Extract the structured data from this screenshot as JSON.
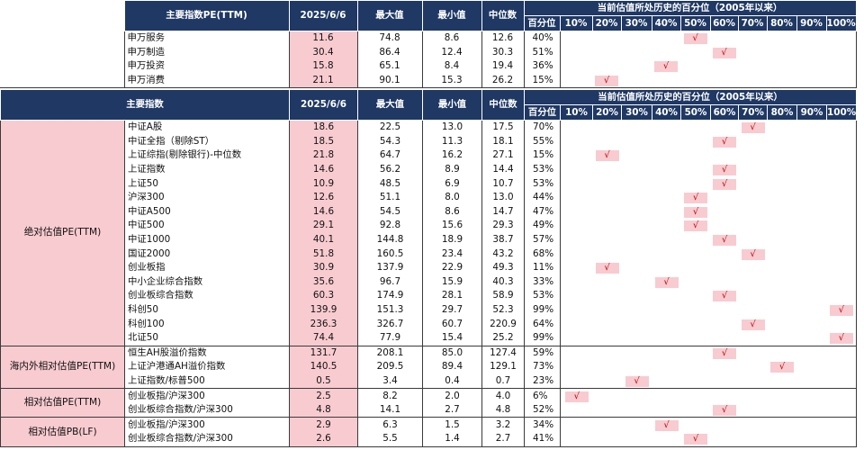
{
  "check_mark": "√",
  "table1": {
    "headers": {
      "name": "主要指数PE(TTM)",
      "date": "2025/6/6",
      "max": "最大值",
      "min": "最小值",
      "median": "中位数",
      "hist_title": "当前估值所处历史的百分位（2005年以来）",
      "pct": "百分位",
      "bins": [
        "10%",
        "20%",
        "30%",
        "40%",
        "50%",
        "60%",
        "70%",
        "80%",
        "90%",
        "100%"
      ]
    },
    "rows": [
      {
        "name": "申万服务",
        "cur": "11.6",
        "max": "74.8",
        "min": "8.6",
        "median": "12.6",
        "pct": "40%",
        "bin": 4
      },
      {
        "name": "申万制造",
        "cur": "30.4",
        "max": "86.4",
        "min": "12.4",
        "median": "30.3",
        "pct": "51%",
        "bin": 5
      },
      {
        "name": "申万投资",
        "cur": "15.8",
        "max": "65.1",
        "min": "8.4",
        "median": "19.4",
        "pct": "36%",
        "bin": 3
      },
      {
        "name": "申万消费",
        "cur": "21.1",
        "max": "90.1",
        "min": "15.3",
        "median": "26.2",
        "pct": "15%",
        "bin": 1
      }
    ]
  },
  "table2": {
    "headers": {
      "name": "主要指数",
      "date": "2025/6/6",
      "max": "最大值",
      "min": "最小值",
      "median": "中位数",
      "hist_title": "当前估值所处历史的百分位（2005年以来）",
      "pct": "百分位",
      "bins": [
        "10%",
        "20%",
        "30%",
        "40%",
        "50%",
        "60%",
        "70%",
        "80%",
        "90%",
        "100%"
      ]
    },
    "groups": [
      {
        "category": "绝对估值PE(TTM)",
        "rows": [
          {
            "name": "中证A股",
            "cur": "18.6",
            "max": "22.5",
            "min": "13.0",
            "median": "17.5",
            "pct": "70%",
            "bin": 6
          },
          {
            "name": "中证全指（剔除ST）",
            "cur": "18.5",
            "max": "54.3",
            "min": "11.3",
            "median": "18.1",
            "pct": "55%",
            "bin": 5
          },
          {
            "name": "上证综指(剔除银行)-中位数",
            "cur": "21.8",
            "max": "64.7",
            "min": "16.2",
            "median": "27.1",
            "pct": "15%",
            "bin": 1
          },
          {
            "name": "上证指数",
            "cur": "14.6",
            "max": "56.2",
            "min": "8.9",
            "median": "14.4",
            "pct": "53%",
            "bin": 5
          },
          {
            "name": "上证50",
            "cur": "10.9",
            "max": "48.5",
            "min": "6.9",
            "median": "10.7",
            "pct": "53%",
            "bin": 5
          },
          {
            "name": "沪深300",
            "cur": "12.6",
            "max": "51.1",
            "min": "8.0",
            "median": "13.0",
            "pct": "44%",
            "bin": 4
          },
          {
            "name": "中证A500",
            "cur": "14.6",
            "max": "54.5",
            "min": "8.6",
            "median": "14.7",
            "pct": "47%",
            "bin": 4
          },
          {
            "name": "中证500",
            "cur": "29.1",
            "max": "92.8",
            "min": "15.6",
            "median": "29.3",
            "pct": "49%",
            "bin": 4
          },
          {
            "name": "中证1000",
            "cur": "40.1",
            "max": "144.8",
            "min": "18.9",
            "median": "38.7",
            "pct": "57%",
            "bin": 5
          },
          {
            "name": "国证2000",
            "cur": "51.8",
            "max": "160.5",
            "min": "23.4",
            "median": "43.2",
            "pct": "68%",
            "bin": 6
          },
          {
            "name": "创业板指",
            "cur": "30.9",
            "max": "137.9",
            "min": "22.9",
            "median": "49.3",
            "pct": "11%",
            "bin": 1
          },
          {
            "name": "中小企业综合指数",
            "cur": "35.6",
            "max": "96.7",
            "min": "15.9",
            "median": "40.3",
            "pct": "33%",
            "bin": 3
          },
          {
            "name": "创业板综合指数",
            "cur": "60.3",
            "max": "174.9",
            "min": "28.1",
            "median": "58.9",
            "pct": "53%",
            "bin": 5
          },
          {
            "name": "科创50",
            "cur": "139.9",
            "max": "151.3",
            "min": "29.7",
            "median": "52.3",
            "pct": "99%",
            "bin": 9
          },
          {
            "name": "科创100",
            "cur": "236.3",
            "max": "326.7",
            "min": "60.7",
            "median": "220.9",
            "pct": "64%",
            "bin": 6
          },
          {
            "name": "北证50",
            "cur": "74.4",
            "max": "77.9",
            "min": "15.4",
            "median": "25.2",
            "pct": "99%",
            "bin": 9
          }
        ]
      },
      {
        "category": "海内外相对估值PE(TTM)",
        "rows": [
          {
            "name": "恒生AH股溢价指数",
            "cur": "131.7",
            "max": "208.1",
            "min": "85.0",
            "median": "127.4",
            "pct": "59%",
            "bin": 5
          },
          {
            "name": "上证沪港通AH溢价指数",
            "cur": "140.5",
            "max": "209.5",
            "min": "89.4",
            "median": "129.1",
            "pct": "73%",
            "bin": 7
          },
          {
            "name": "上证指数/标普500",
            "cur": "0.5",
            "max": "3.4",
            "min": "0.4",
            "median": "0.7",
            "pct": "23%",
            "bin": 2
          }
        ]
      },
      {
        "category": "相对估值PE(TTM)",
        "rows": [
          {
            "name": "创业板指/沪深300",
            "cur": "2.5",
            "max": "8.2",
            "min": "2.0",
            "median": "4.0",
            "pct": "6%",
            "bin": 0
          },
          {
            "name": "创业板综合指数/沪深300",
            "cur": "4.8",
            "max": "14.1",
            "min": "2.7",
            "median": "4.8",
            "pct": "52%",
            "bin": 5
          }
        ]
      },
      {
        "category": "相对估值PB(LF)",
        "rows": [
          {
            "name": "创业板指/沪深300",
            "cur": "2.9",
            "max": "6.3",
            "min": "1.5",
            "median": "3.2",
            "pct": "34%",
            "bin": 3
          },
          {
            "name": "创业板综合指数/沪深300",
            "cur": "2.6",
            "max": "5.5",
            "min": "1.4",
            "median": "2.7",
            "pct": "41%",
            "bin": 4
          }
        ]
      }
    ]
  }
}
